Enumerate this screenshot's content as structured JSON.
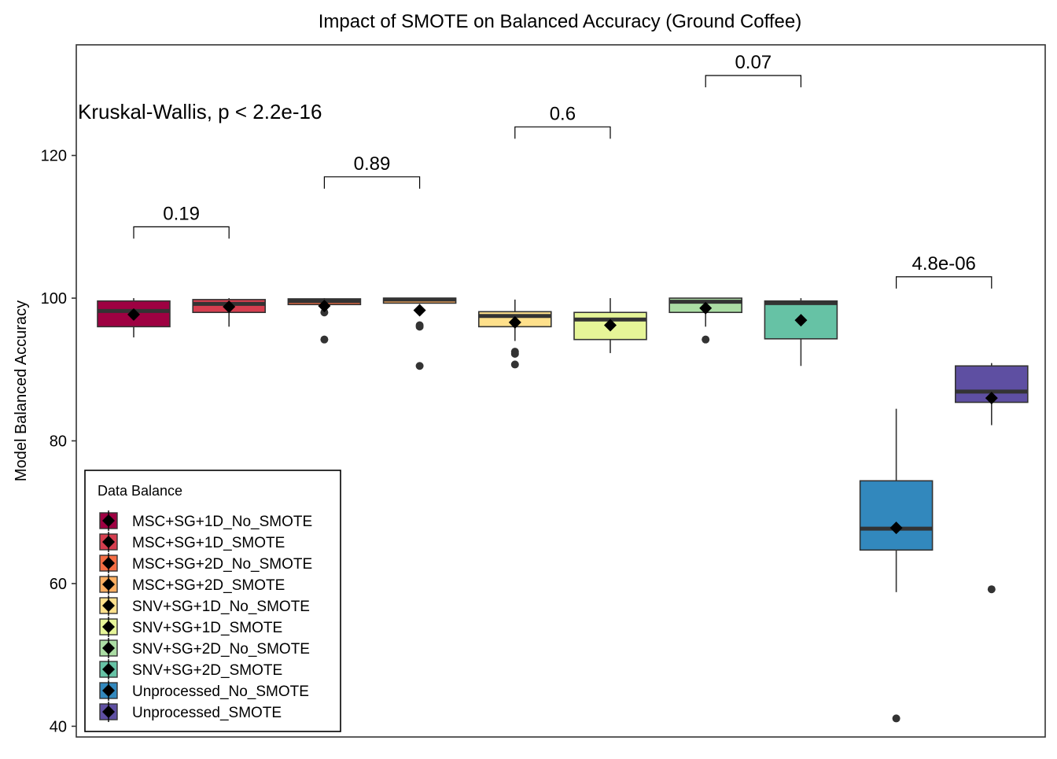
{
  "chart_data": {
    "type": "box",
    "title": "Impact of SMOTE on Balanced Accuracy (Ground Coffee)",
    "xlabel": "",
    "ylabel": "Model Balanced Accuracy",
    "ylim": [
      38.5,
      135.5
    ],
    "yticks": [
      40,
      60,
      80,
      100,
      120
    ],
    "grid": false,
    "annotation": "Kruskal-Wallis, p < 2.2e-16",
    "legend": {
      "title": "Data Balance",
      "position": "bottom-left"
    },
    "series": [
      {
        "name": "MSC+SG+1D_No_SMOTE",
        "color": "#9E0142",
        "min": 94.5,
        "q1": 96.0,
        "median": 98.2,
        "q3": 99.6,
        "max": 100.0,
        "mean": 97.7,
        "outliers": []
      },
      {
        "name": "MSC+SG+1D_SMOTE",
        "color": "#D53E4F",
        "min": 96.0,
        "q1": 98.0,
        "median": 99.2,
        "q3": 99.8,
        "max": 100.0,
        "mean": 98.8,
        "outliers": []
      },
      {
        "name": "MSC+SG+2D_No_SMOTE",
        "color": "#F46D43",
        "min": 99.0,
        "q1": 99.1,
        "median": 99.6,
        "q3": 99.9,
        "max": 100.0,
        "mean": 98.9,
        "outliers": [
          98.0,
          94.2
        ]
      },
      {
        "name": "MSC+SG+2D_SMOTE",
        "color": "#FDAE61",
        "min": 99.2,
        "q1": 99.3,
        "median": 99.8,
        "q3": 100.0,
        "max": 100.0,
        "mean": 98.3,
        "outliers": [
          96.2,
          96.0,
          90.5
        ]
      },
      {
        "name": "SNV+SG+1D_No_SMOTE",
        "color": "#FEE08B",
        "min": 94.0,
        "q1": 96.0,
        "median": 97.5,
        "q3": 98.1,
        "max": 99.8,
        "mean": 96.6,
        "outliers": [
          92.5,
          92.2,
          90.7
        ]
      },
      {
        "name": "SNV+SG+1D_SMOTE",
        "color": "#E6F598",
        "min": 92.3,
        "q1": 94.2,
        "median": 97.0,
        "q3": 98.0,
        "max": 100.0,
        "mean": 96.2,
        "outliers": []
      },
      {
        "name": "SNV+SG+2D_No_SMOTE",
        "color": "#ABDDA4",
        "min": 96.0,
        "q1": 98.0,
        "median": 99.5,
        "q3": 100.0,
        "max": 100.0,
        "mean": 98.6,
        "outliers": [
          94.2
        ]
      },
      {
        "name": "SNV+SG+2D_SMOTE",
        "color": "#66C2A5",
        "min": 90.5,
        "q1": 94.3,
        "median": 99.3,
        "q3": 99.6,
        "max": 100.0,
        "mean": 96.9,
        "outliers": []
      },
      {
        "name": "Unprocessed_No_SMOTE",
        "color": "#3288BD",
        "min": 58.8,
        "q1": 64.7,
        "median": 67.7,
        "q3": 74.4,
        "max": 84.5,
        "mean": 67.8,
        "outliers": [
          41.1
        ]
      },
      {
        "name": "Unprocessed_SMOTE",
        "color": "#5E4FA2",
        "min": 82.2,
        "q1": 85.4,
        "median": 86.9,
        "q3": 90.5,
        "max": 90.9,
        "mean": 86.0,
        "outliers": [
          59.2
        ]
      }
    ],
    "comparisons": [
      {
        "groups": [
          0,
          1
        ],
        "label": "0.19",
        "y": 110.0
      },
      {
        "groups": [
          2,
          3
        ],
        "label": "0.89",
        "y": 117.0
      },
      {
        "groups": [
          4,
          5
        ],
        "label": "0.6",
        "y": 124.0
      },
      {
        "groups": [
          6,
          7
        ],
        "label": "0.07",
        "y": 131.2
      },
      {
        "groups": [
          8,
          9
        ],
        "label": "4.8e-06",
        "y": 103.0
      }
    ]
  }
}
